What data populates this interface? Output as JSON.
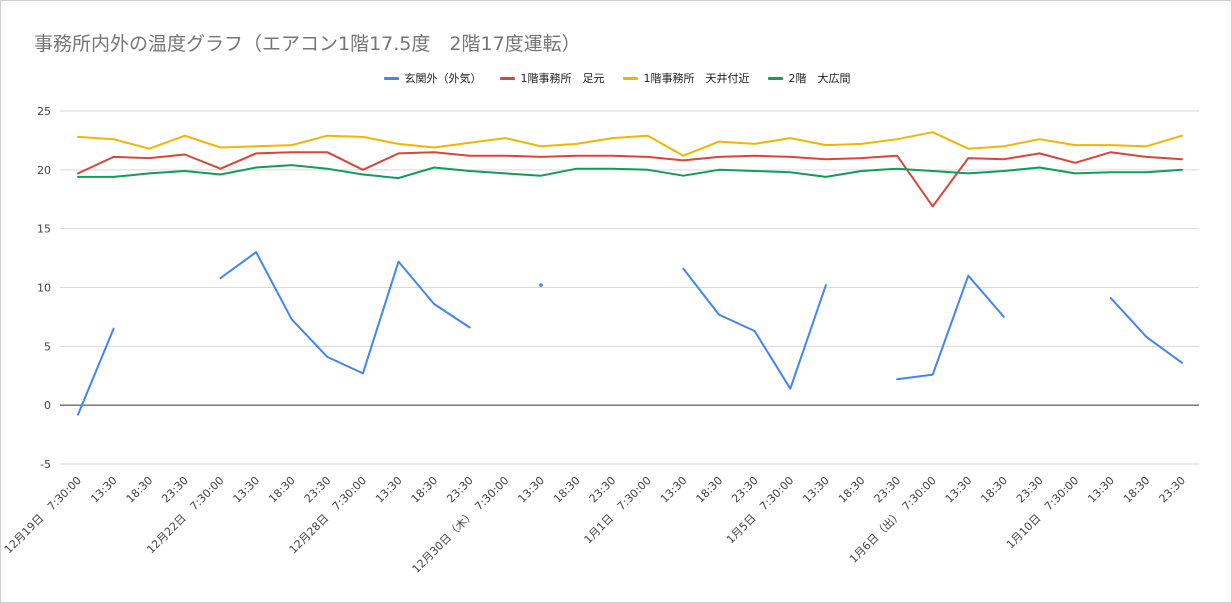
{
  "title": "事務所内外の温度グラフ（エアコン1階17.5度　2階17度運転）",
  "chart_data": {
    "type": "line",
    "title": "事務所内外の温度グラフ（エアコン1階17.5度　2階17度運転）",
    "xlabel": "",
    "ylabel": "",
    "ylim": [
      -5,
      25
    ],
    "y_ticks": [
      25,
      20,
      15,
      10,
      5,
      0,
      -5
    ],
    "grid": true,
    "legend_position": "top",
    "categories": [
      "12月19日　7:30:00",
      "13:30",
      "18:30",
      "23:30",
      "12月22日　7:30:00",
      "13:30",
      "18:30",
      "23:30",
      "12月28日　7:30:00",
      "13:30",
      "18:30",
      "23:30",
      "12月30日（木）　7:30:00",
      "13:30",
      "18:30",
      "23:30",
      "1月1日　7:30:00",
      "13:30",
      "18:30",
      "23:30",
      "1月5日　7:30:00",
      "13:30",
      "18:30",
      "23:30",
      "1月6日（出）　7:30:00",
      "13:30",
      "18:30",
      "23:30",
      "1月10日　7:30:00",
      "13:30",
      "18:30",
      "23:30"
    ],
    "series": [
      {
        "name": "玄関外（外気）",
        "color": "#4285f4",
        "values": [
          -0.8,
          6.5,
          null,
          null,
          10.8,
          13.0,
          7.3,
          4.1,
          2.7,
          12.2,
          8.6,
          6.6,
          null,
          10.2,
          null,
          null,
          null,
          11.6,
          7.7,
          6.3,
          1.4,
          10.2,
          null,
          2.2,
          2.6,
          11.0,
          7.5,
          null,
          null,
          9.1,
          5.8,
          3.6
        ]
      },
      {
        "name": "1階事務所　足元",
        "color": "#db4437",
        "values": [
          19.7,
          21.1,
          21.0,
          21.3,
          20.1,
          21.4,
          21.5,
          21.5,
          20.0,
          21.4,
          21.5,
          21.2,
          21.2,
          21.1,
          21.2,
          21.2,
          21.1,
          20.8,
          21.1,
          21.2,
          21.1,
          20.9,
          21.0,
          21.2,
          16.9,
          21.0,
          20.9,
          21.4,
          20.6,
          21.5,
          21.1,
          20.9
        ]
      },
      {
        "name": "1階事務所　天井付近",
        "color": "#f4b400",
        "values": [
          22.8,
          22.6,
          21.8,
          22.9,
          21.9,
          22.0,
          22.1,
          22.9,
          22.8,
          22.2,
          21.9,
          22.3,
          22.7,
          22.0,
          22.2,
          22.7,
          22.9,
          21.2,
          22.4,
          22.2,
          22.7,
          22.1,
          22.2,
          22.6,
          23.2,
          21.8,
          22.0,
          22.6,
          22.1,
          22.1,
          22.0,
          22.9
        ]
      },
      {
        "name": "2階　大広間",
        "color": "#0f9d58",
        "values": [
          19.4,
          19.4,
          19.7,
          19.9,
          19.6,
          20.2,
          20.4,
          20.1,
          19.6,
          19.3,
          20.2,
          19.9,
          19.7,
          19.5,
          20.1,
          20.1,
          20.0,
          19.5,
          20.0,
          19.9,
          19.8,
          19.4,
          19.9,
          20.1,
          19.9,
          19.7,
          19.9,
          20.2,
          19.7,
          19.8,
          19.8,
          20.0
        ]
      }
    ]
  }
}
